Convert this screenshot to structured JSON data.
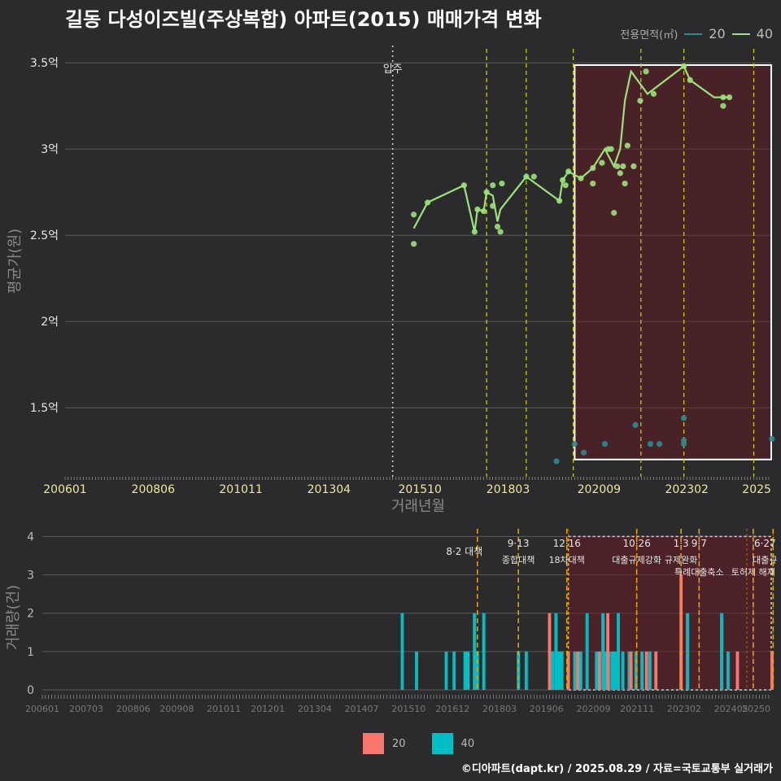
{
  "title": "길동 다성이즈빌(주상복합) 아파트(2015) 매매가격 변화",
  "footer": "©디아파트(dapt.kr) / 2025.08.29 / 자료=국토교통부 실거래가",
  "legend_top": {
    "title": "전용면적(㎡)",
    "items": [
      {
        "label": "20",
        "color": "#2a8b8b"
      },
      {
        "label": "40",
        "color": "#9be27a"
      }
    ]
  },
  "legend_bottom": {
    "items": [
      {
        "label": "20",
        "color": "#f8766d"
      },
      {
        "label": "40",
        "color": "#00bfc4"
      }
    ]
  },
  "chart_data": [
    {
      "type": "line",
      "title": "길동 다성이즈빌(주상복합) 아파트(2015) 매매가격 변화",
      "xlabel": "거래년월",
      "ylabel": "평균가(원)",
      "x_tick_labels": [
        "200601",
        "200806",
        "201011",
        "201304",
        "201510",
        "201803",
        "202009",
        "202302",
        "2025"
      ],
      "x_tick_years": [
        2006.0,
        2008.42,
        2010.83,
        2013.25,
        2015.75,
        2018.17,
        2020.67,
        2023.08,
        2025.0
      ],
      "y_tick_labels": [
        "1.5억",
        "2억",
        "2.5억",
        "3억",
        "3.5억"
      ],
      "y_tick_values": [
        1.5,
        2.0,
        2.5,
        3.0,
        3.5
      ],
      "ylim": [
        1.1,
        3.6
      ],
      "xlim": [
        2006.0,
        2025.4
      ],
      "move_in": {
        "x": 2015.0,
        "label": "입주"
      },
      "policy_lines": [
        2017.58,
        2018.67,
        2019.96,
        2021.82,
        2023.0,
        2024.92,
        2025.5
      ],
      "highlight": {
        "x_start": 2020.0,
        "x_end": 2025.5,
        "y_start": 1.2,
        "y_end": 3.55
      },
      "series": [
        {
          "name": "40",
          "color": "#9be27a",
          "line": [
            [
              2015.58,
              2.54
            ],
            [
              2015.96,
              2.69
            ],
            [
              2016.96,
              2.79
            ],
            [
              2017.25,
              2.52
            ],
            [
              2017.33,
              2.65
            ],
            [
              2017.5,
              2.64
            ],
            [
              2017.58,
              2.75
            ],
            [
              2017.75,
              2.73
            ],
            [
              2017.88,
              2.58
            ],
            [
              2017.96,
              2.65
            ],
            [
              2018.67,
              2.84
            ],
            [
              2019.58,
              2.7
            ],
            [
              2019.67,
              2.82
            ],
            [
              2019.83,
              2.87
            ],
            [
              2020.17,
              2.83
            ],
            [
              2020.5,
              2.89
            ],
            [
              2020.83,
              3.0
            ],
            [
              2021.08,
              2.9
            ],
            [
              2021.25,
              3.0
            ],
            [
              2021.38,
              3.28
            ],
            [
              2021.55,
              3.45
            ],
            [
              2022.0,
              3.32
            ],
            [
              2023.0,
              3.48
            ],
            [
              2023.17,
              3.4
            ],
            [
              2023.83,
              3.3
            ],
            [
              2024.25,
              3.3
            ]
          ],
          "points": [
            [
              2015.58,
              2.62
            ],
            [
              2015.58,
              2.45
            ],
            [
              2015.96,
              2.69
            ],
            [
              2016.96,
              2.79
            ],
            [
              2017.25,
              2.52
            ],
            [
              2017.33,
              2.65
            ],
            [
              2017.5,
              2.64
            ],
            [
              2017.58,
              2.75
            ],
            [
              2017.75,
              2.79
            ],
            [
              2017.75,
              2.67
            ],
            [
              2017.88,
              2.55
            ],
            [
              2017.96,
              2.52
            ],
            [
              2018.0,
              2.8
            ],
            [
              2018.67,
              2.84
            ],
            [
              2018.88,
              2.84
            ],
            [
              2019.58,
              2.7
            ],
            [
              2019.67,
              2.82
            ],
            [
              2019.75,
              2.79
            ],
            [
              2019.83,
              2.87
            ],
            [
              2020.17,
              2.83
            ],
            [
              2020.5,
              2.89
            ],
            [
              2020.5,
              2.8
            ],
            [
              2020.75,
              2.92
            ],
            [
              2020.92,
              3.0
            ],
            [
              2021.0,
              3.0
            ],
            [
              2021.08,
              2.63
            ],
            [
              2021.17,
              2.9
            ],
            [
              2021.25,
              2.86
            ],
            [
              2021.33,
              2.9
            ],
            [
              2021.38,
              2.8
            ],
            [
              2021.45,
              3.02
            ],
            [
              2021.62,
              2.9
            ],
            [
              2021.8,
              3.28
            ],
            [
              2021.96,
              3.45
            ],
            [
              2022.17,
              3.32
            ],
            [
              2023.0,
              3.48
            ],
            [
              2023.17,
              3.4
            ],
            [
              2024.08,
              3.3
            ],
            [
              2024.08,
              3.25
            ],
            [
              2024.25,
              3.3
            ]
          ]
        },
        {
          "name": "20",
          "color": "#2a8b8b",
          "points": [
            [
              2019.5,
              1.19
            ],
            [
              2020.0,
              1.29
            ],
            [
              2020.25,
              1.24
            ],
            [
              2020.83,
              1.29
            ],
            [
              2021.67,
              1.4
            ],
            [
              2022.08,
              1.29
            ],
            [
              2022.33,
              1.29
            ],
            [
              2023.0,
              1.44
            ],
            [
              2023.0,
              1.31
            ],
            [
              2023.0,
              1.29
            ],
            [
              2025.42,
              1.32
            ]
          ]
        }
      ]
    },
    {
      "type": "bar",
      "xlabel": "",
      "ylabel": "거래량(건)",
      "x_tick_labels": [
        "200601",
        "200703",
        "200806",
        "200908",
        "201011",
        "201201",
        "201304",
        "201407",
        "201510",
        "201612",
        "201803",
        "201906",
        "202009",
        "202111",
        "202302",
        "202405",
        "20250"
      ],
      "x_tick_years": [
        2006.0,
        2007.17,
        2008.42,
        2009.58,
        2010.83,
        2012.0,
        2013.25,
        2014.5,
        2015.75,
        2016.92,
        2018.17,
        2019.42,
        2020.67,
        2021.83,
        2023.08,
        2024.33,
        2025.0
      ],
      "y_tick_labels": [
        "0",
        "1",
        "2",
        "3",
        "4"
      ],
      "y_tick_values": [
        0,
        1,
        2,
        3,
        4
      ],
      "ylim": [
        0,
        4.2
      ],
      "xlim": [
        2006.0,
        2025.4
      ],
      "highlight": {
        "x_start": 2020.0,
        "x_end": 2025.5,
        "y_end": 4
      },
      "policies": [
        {
          "x": 2017.58,
          "date": "8·2 대책",
          "desc": ""
        },
        {
          "x": 2018.67,
          "date": "9·13",
          "desc": "종합대책"
        },
        {
          "x": 2019.96,
          "date": "12·16",
          "desc": "18차대책"
        },
        {
          "x": 2021.82,
          "date": "10·26",
          "desc": "대출규제강화"
        },
        {
          "x": 2023.0,
          "date": "1·3",
          "desc": "규제완화"
        },
        {
          "x": 2023.48,
          "date": "9·7",
          "desc": "특례대출축소"
        },
        {
          "x": 2024.92,
          "date": "",
          "desc": "토허제 해제"
        },
        {
          "x": 2025.45,
          "date": "6·27",
          "desc": "대출규"
        }
      ],
      "policy_lines_plain": [
        2020.0,
        2021.82,
        2023.48,
        2024.75,
        2024.92,
        2025.45
      ],
      "series": [
        {
          "name": "40",
          "color": "#00bfc4",
          "bars": [
            [
              2015.58,
              2
            ],
            [
              2015.96,
              1
            ],
            [
              2016.75,
              1
            ],
            [
              2016.96,
              1
            ],
            [
              2017.25,
              1
            ],
            [
              2017.33,
              1
            ],
            [
              2017.5,
              2
            ],
            [
              2017.58,
              1
            ],
            [
              2017.75,
              2
            ],
            [
              2018.67,
              1
            ],
            [
              2018.88,
              1
            ],
            [
              2019.58,
              1
            ],
            [
              2019.67,
              2
            ],
            [
              2019.75,
              1
            ],
            [
              2019.83,
              1
            ],
            [
              2020.17,
              1
            ],
            [
              2020.33,
              1
            ],
            [
              2020.5,
              2
            ],
            [
              2020.75,
              1
            ],
            [
              2020.92,
              2
            ],
            [
              2021.0,
              1
            ],
            [
              2021.08,
              1
            ],
            [
              2021.17,
              1
            ],
            [
              2021.25,
              1
            ],
            [
              2021.33,
              2
            ],
            [
              2021.45,
              1
            ],
            [
              2021.62,
              1
            ],
            [
              2021.8,
              1
            ],
            [
              2021.96,
              1
            ],
            [
              2022.17,
              1
            ],
            [
              2023.0,
              1
            ],
            [
              2023.17,
              2
            ],
            [
              2024.08,
              2
            ],
            [
              2024.25,
              1
            ]
          ]
        },
        {
          "name": "20",
          "color": "#f8766d",
          "bars": [
            [
              2019.5,
              2
            ],
            [
              2020.0,
              1
            ],
            [
              2020.25,
              1
            ],
            [
              2020.83,
              1
            ],
            [
              2021.05,
              2
            ],
            [
              2021.67,
              1
            ],
            [
              2022.08,
              1
            ],
            [
              2022.33,
              1
            ],
            [
              2023.0,
              3
            ],
            [
              2024.5,
              1
            ],
            [
              2025.42,
              1
            ]
          ]
        }
      ]
    }
  ]
}
